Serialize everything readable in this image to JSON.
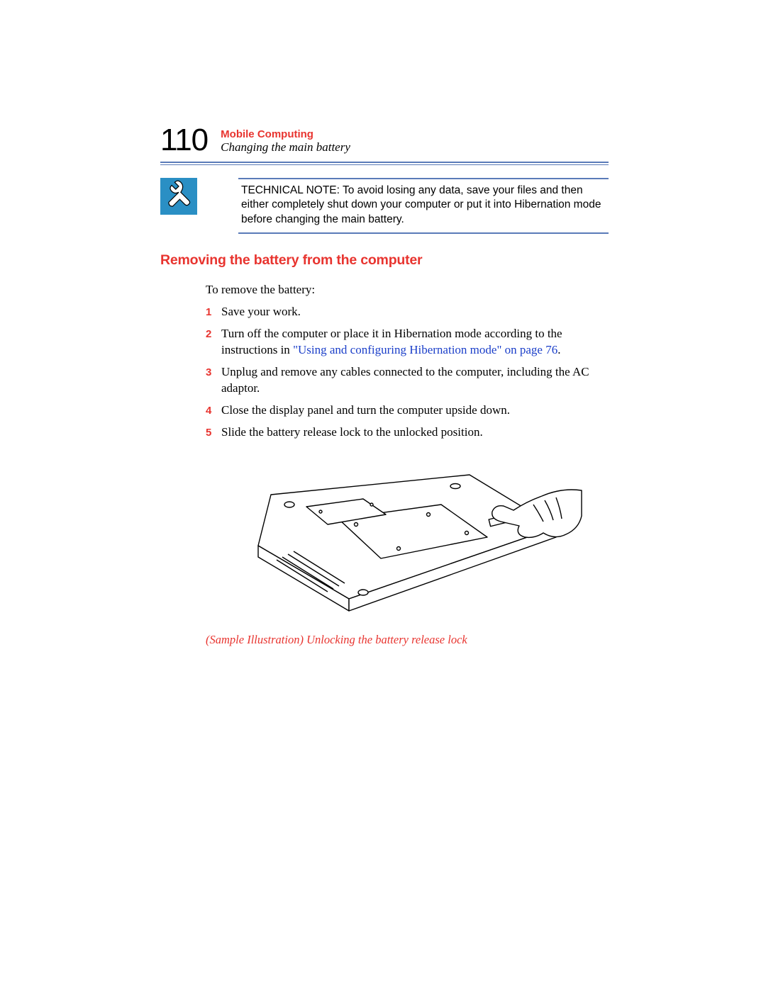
{
  "page_number": "110",
  "chapter_title": "Mobile Computing",
  "section_title": "Changing the main battery",
  "note_text": "TECHNICAL NOTE: To avoid losing any data, save your files and then either completely shut down your computer or put it into Hibernation mode before changing the main battery.",
  "heading": "Removing the battery from the computer",
  "intro": "To remove the battery:",
  "steps": [
    {
      "n": "1",
      "pre": "Save your work.",
      "link": "",
      "post": ""
    },
    {
      "n": "2",
      "pre": "Turn off the computer or place it in Hibernation mode according to the instructions in ",
      "link": "\"Using and configuring Hibernation mode\" on page 76",
      "post": "."
    },
    {
      "n": "3",
      "pre": "Unplug and remove any cables connected to the computer, including the AC adaptor.",
      "link": "",
      "post": ""
    },
    {
      "n": "4",
      "pre": "Close the display panel and turn the computer upside down.",
      "link": "",
      "post": ""
    },
    {
      "n": "5",
      "pre": "Slide the battery release lock to the unlocked position.",
      "link": "",
      "post": ""
    }
  ],
  "caption": "(Sample Illustration) Unlocking the battery release lock",
  "colors": {
    "red": "#e8342f",
    "blue_rule": "#5a7bb8",
    "link": "#1a3ec9",
    "icon_bg": "#2a8fc4"
  }
}
